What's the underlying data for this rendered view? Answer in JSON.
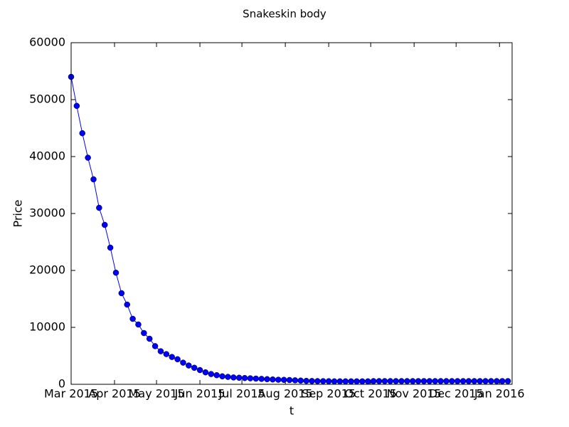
{
  "chart_data": {
    "type": "line",
    "title": "Snakeskin body",
    "x_label": "t",
    "y_label": "Price",
    "x": [
      "2015-03-01",
      "2015-03-05",
      "2015-03-09",
      "2015-03-13",
      "2015-03-17",
      "2015-03-21",
      "2015-03-25",
      "2015-03-29",
      "2015-04-02",
      "2015-04-06",
      "2015-04-10",
      "2015-04-14",
      "2015-04-18",
      "2015-04-22",
      "2015-04-26",
      "2015-04-30",
      "2015-05-04",
      "2015-05-08",
      "2015-05-12",
      "2015-05-16",
      "2015-05-20",
      "2015-05-24",
      "2015-05-28",
      "2015-06-01",
      "2015-06-05",
      "2015-06-09",
      "2015-06-13",
      "2015-06-17",
      "2015-06-21",
      "2015-06-25",
      "2015-06-29",
      "2015-07-03",
      "2015-07-07",
      "2015-07-11",
      "2015-07-15",
      "2015-07-19",
      "2015-07-23",
      "2015-07-27",
      "2015-07-31",
      "2015-08-04",
      "2015-08-08",
      "2015-08-12",
      "2015-08-16",
      "2015-08-20",
      "2015-08-24",
      "2015-08-28",
      "2015-09-01",
      "2015-09-05",
      "2015-09-09",
      "2015-09-13",
      "2015-09-17",
      "2015-09-21",
      "2015-09-25",
      "2015-09-29",
      "2015-10-03",
      "2015-10-07",
      "2015-10-11",
      "2015-10-15",
      "2015-10-19",
      "2015-10-23",
      "2015-10-27",
      "2015-10-31",
      "2015-11-04",
      "2015-11-08",
      "2015-11-12",
      "2015-11-16",
      "2015-11-20",
      "2015-11-24",
      "2015-11-28",
      "2015-12-02",
      "2015-12-06",
      "2015-12-10",
      "2015-12-14",
      "2015-12-18",
      "2015-12-22",
      "2015-12-26",
      "2015-12-30",
      "2016-01-03",
      "2016-01-07"
    ],
    "series": [
      {
        "name": "Price",
        "color": "#0000ff",
        "values": [
          54000,
          48900,
          44100,
          39800,
          36000,
          31000,
          28000,
          24000,
          19600,
          16000,
          14000,
          11500,
          10500,
          9000,
          8000,
          6700,
          5800,
          5300,
          4800,
          4400,
          3800,
          3300,
          2900,
          2500,
          2100,
          1800,
          1600,
          1400,
          1300,
          1200,
          1150,
          1100,
          1050,
          1000,
          950,
          900,
          850,
          800,
          780,
          750,
          700,
          650,
          600,
          580,
          560,
          550,
          540,
          520,
          520,
          520,
          520,
          520,
          520,
          520,
          560,
          560,
          560,
          560,
          560,
          560,
          560,
          560,
          560,
          560,
          560,
          560,
          560,
          560,
          560,
          560,
          560,
          560,
          560,
          560,
          560,
          560,
          560,
          560,
          560
        ]
      }
    ],
    "xlim": [
      "2015-03-01",
      "2016-01-10"
    ],
    "xticks": [
      {
        "value": "2015-03-01",
        "label": "Mar 2015"
      },
      {
        "value": "2015-04-01",
        "label": "Apr 2015"
      },
      {
        "value": "2015-05-01",
        "label": "May 2015"
      },
      {
        "value": "2015-06-01",
        "label": "Jun 2015"
      },
      {
        "value": "2015-07-01",
        "label": "Jul 2015"
      },
      {
        "value": "2015-08-01",
        "label": "Aug 2015"
      },
      {
        "value": "2015-09-01",
        "label": "Sep 2015"
      },
      {
        "value": "2015-10-01",
        "label": "Oct 2015"
      },
      {
        "value": "2015-11-01",
        "label": "Nov 2015"
      },
      {
        "value": "2015-12-01",
        "label": "Dec 2015"
      },
      {
        "value": "2016-01-01",
        "label": "Jan 2016"
      }
    ],
    "ylim": [
      0,
      60000
    ],
    "yticks": [
      0,
      10000,
      20000,
      30000,
      40000,
      50000,
      60000
    ],
    "grid": false
  }
}
